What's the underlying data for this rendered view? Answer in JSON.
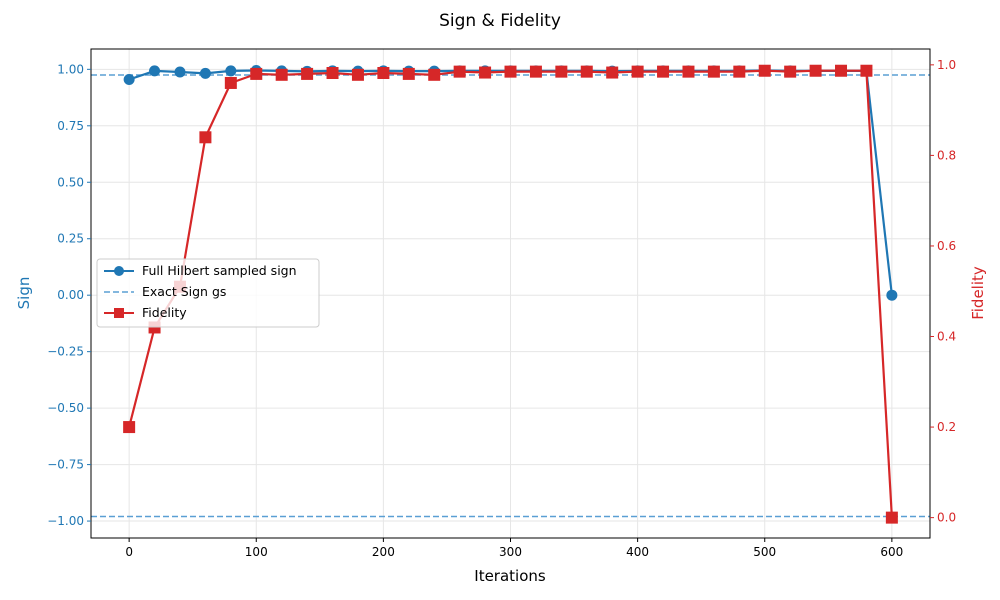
{
  "chart_data": {
    "type": "line",
    "title": "Sign & Fidelity",
    "xlabel": "Iterations",
    "ylabel_left": "Sign",
    "ylabel_right": "Fidelity",
    "xlim": [
      -30,
      630
    ],
    "ylim_left": [
      -1.075,
      1.09
    ],
    "ylim_right": [
      -0.045,
      1.035
    ],
    "x_ticks": [
      0,
      100,
      200,
      300,
      400,
      500,
      600
    ],
    "y_left_ticks": [
      1.0,
      0.75,
      0.5,
      0.25,
      0.0,
      -0.25,
      -0.5,
      -0.75,
      -1.0
    ],
    "y_left_tick_labels": [
      "1.00",
      "0.75",
      "0.50",
      "0.25",
      "0.00",
      "−0.25",
      "−0.50",
      "−0.75",
      "−1.00"
    ],
    "y_right_ticks": [
      0.0,
      0.2,
      0.4,
      0.6,
      0.8,
      1.0
    ],
    "y_right_tick_labels": [
      "0.0",
      "0.2",
      "0.4",
      "0.6",
      "0.8",
      "1.0"
    ],
    "grid": true,
    "legend_position": "center-left",
    "colors": {
      "sign": "#1f77b4",
      "exact": "#5a9fd4",
      "fidelity": "#d62728"
    },
    "x": [
      0,
      20,
      40,
      60,
      80,
      100,
      120,
      140,
      160,
      180,
      200,
      220,
      240,
      260,
      280,
      300,
      320,
      340,
      360,
      380,
      400,
      420,
      440,
      460,
      480,
      500,
      520,
      540,
      560,
      580,
      600
    ],
    "series": [
      {
        "name": "Full Hilbert sampled sign",
        "axis": "left",
        "marker": "circle",
        "style": "solid",
        "values": [
          0.955,
          0.993,
          0.988,
          0.982,
          0.993,
          0.995,
          0.993,
          0.991,
          0.993,
          0.992,
          0.993,
          0.992,
          0.992,
          0.993,
          0.993,
          0.993,
          0.993,
          0.993,
          0.993,
          0.992,
          0.993,
          0.993,
          0.993,
          0.993,
          0.993,
          0.995,
          0.993,
          0.993,
          0.993,
          0.993,
          0.0
        ]
      },
      {
        "name": "Exact Sign gs",
        "axis": "left",
        "style": "dashed",
        "hlines": [
          0.975,
          -0.98
        ]
      },
      {
        "name": "Fidelity",
        "axis": "right",
        "marker": "square",
        "style": "solid",
        "values": [
          0.2,
          0.42,
          0.51,
          0.84,
          0.96,
          0.98,
          0.978,
          0.98,
          0.982,
          0.978,
          0.982,
          0.98,
          0.978,
          0.985,
          0.983,
          0.985,
          0.985,
          0.985,
          0.985,
          0.983,
          0.985,
          0.985,
          0.985,
          0.985,
          0.985,
          0.987,
          0.985,
          0.987,
          0.987,
          0.987,
          0.0
        ]
      }
    ]
  }
}
